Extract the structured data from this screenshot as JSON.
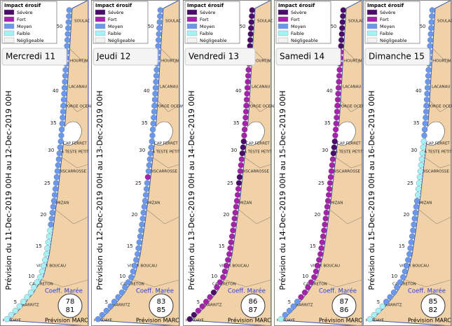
{
  "legend": {
    "title": "Impact érosif",
    "levels": [
      {
        "name": "Sévère",
        "color": "#4a0d6a"
      },
      {
        "name": "Fort",
        "color": "#a323a9"
      },
      {
        "name": "Moyen",
        "color": "#6a98ec"
      },
      {
        "name": "Faible",
        "color": "#a5f1f8"
      },
      {
        "name": "Négligeable",
        "color": "#f2f2f2"
      }
    ]
  },
  "km_labels": [
    5,
    10,
    15,
    20,
    25,
    30,
    35,
    40,
    45,
    50
  ],
  "places": [
    "SOULAC",
    "HOURTIN",
    "LACANAU",
    "LEPORGE OCEAN",
    "CAP FERRET",
    "LA TESTE PETIT",
    "BISCARROSSE",
    "MIMIZAN",
    "VIEUX BOUCAU",
    "CAPBRETON",
    "BIARRITZ",
    "HENDAYE"
  ],
  "coeff_label": "Coeff. Marée",
  "source": "Prévision MARC",
  "panels": [
    {
      "day": "Mercredi 11",
      "period": "Prévision du 11-Dec-2019 00H au 12-Dec-2019 00H",
      "coefficients": [
        78,
        81
      ],
      "segments": [
        {
          "level": "Faible",
          "count": 18
        },
        {
          "level": "Moyen",
          "count": 37
        }
      ]
    },
    {
      "day": "Jeudi 12",
      "period": "Prévision du 12-Dec-2019 00H au 13-Dec-2019 00H",
      "coefficients": [
        83,
        85
      ],
      "segments": [
        {
          "level": "Moyen",
          "count": 26
        },
        {
          "level": "Fort",
          "count": 1
        },
        {
          "level": "Moyen",
          "count": 28
        }
      ]
    },
    {
      "day": "Vendredi 13",
      "period": "Prévision du 13-Dec-2019 00H au 14-Dec-2019 00H",
      "coefficients": [
        86,
        87
      ],
      "segments": [
        {
          "level": "Sévère",
          "count": 2
        },
        {
          "level": "Fort",
          "count": 4
        },
        {
          "level": "Sévère",
          "count": 1
        },
        {
          "level": "Fort",
          "count": 18
        },
        {
          "level": "Sévère",
          "count": 2
        },
        {
          "level": "Fort",
          "count": 3
        },
        {
          "level": "Sévère",
          "count": 3
        },
        {
          "level": "Fort",
          "count": 15
        },
        {
          "level": "Sévère",
          "count": 7
        }
      ]
    },
    {
      "day": "Samedi 14",
      "period": "Prévision du 14-Dec-2019 00H au 15-Dec-2019 00H",
      "coefficients": [
        87,
        86
      ],
      "segments": [
        {
          "level": "Faible",
          "count": 1
        },
        {
          "level": "Moyen",
          "count": 4
        },
        {
          "level": "Fort",
          "count": 25
        },
        {
          "level": "Sévère",
          "count": 3
        },
        {
          "level": "Fort",
          "count": 15
        },
        {
          "level": "Sévère",
          "count": 7
        }
      ]
    },
    {
      "day": "Dimanche 15",
      "period": "Prévision du 15-Dec-2019 00H au 16-Dec-2019 00H",
      "coefficients": [
        85,
        82
      ],
      "segments": [
        {
          "level": "Faible",
          "count": 4
        },
        {
          "level": "Moyen",
          "count": 19
        },
        {
          "level": "Faible",
          "count": 10
        },
        {
          "level": "Moyen",
          "count": 22
        }
      ]
    }
  ]
}
